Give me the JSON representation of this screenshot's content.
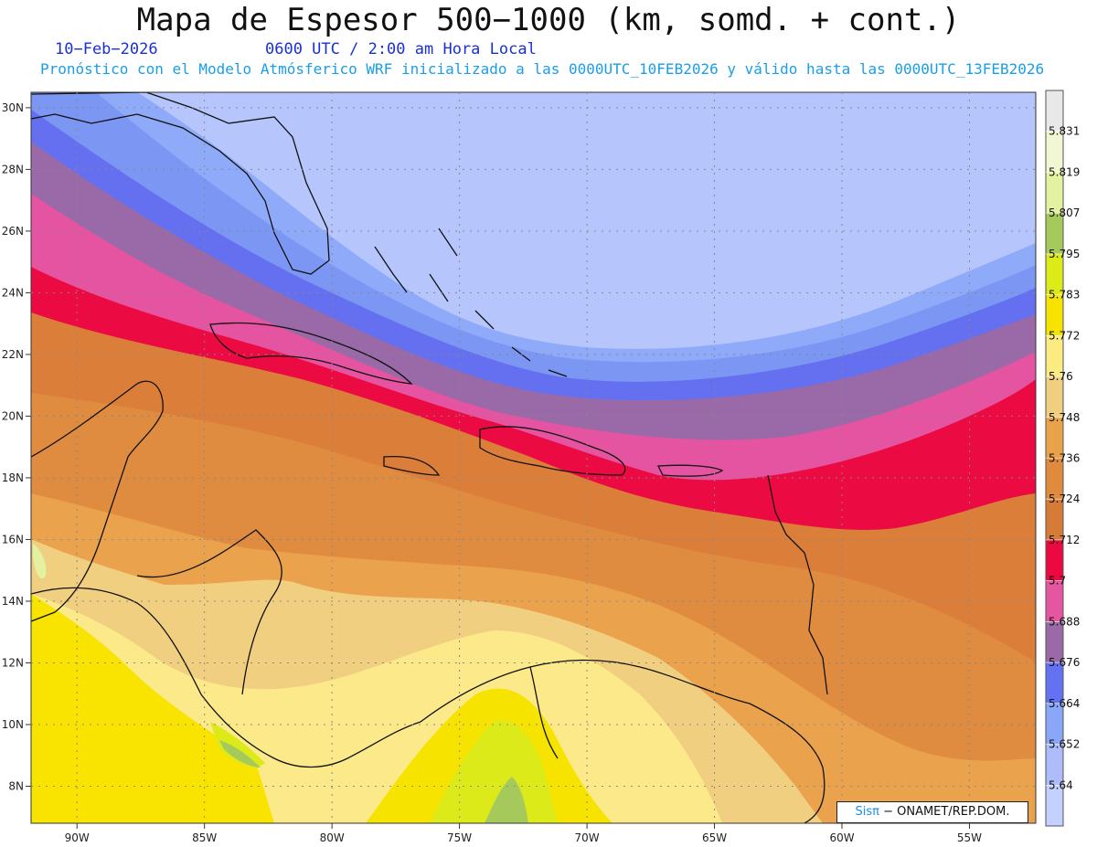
{
  "header": {
    "title": "Mapa de Espesor 500−1000 (km, somd. + cont.)",
    "date": "10−Feb−2026",
    "time": "0600 UTC / 2:00 am Hora Local",
    "description": "Pronóstico con el Modelo Atmósferico WRF inicializado a las 0000UTC_10FEB2026 y válido hasta las  0000UTC_13FEB2026"
  },
  "map": {
    "lon_labels": [
      "90W",
      "85W",
      "80W",
      "75W",
      "70W",
      "65W",
      "60W",
      "55W"
    ],
    "lat_labels": [
      "30N",
      "28N",
      "26N",
      "24N",
      "22N",
      "20N",
      "18N",
      "16N",
      "14N",
      "12N",
      "10N",
      "8N"
    ],
    "lon_values": [
      -90,
      -85,
      -80,
      -75,
      -70,
      -65,
      -60,
      -55
    ],
    "lat_values": [
      30,
      28,
      26,
      24,
      22,
      20,
      18,
      16,
      14,
      12,
      10,
      8
    ],
    "lon_range": [
      -91.8,
      -52.4
    ],
    "lat_range": [
      6.8,
      30.5
    ]
  },
  "colorbar": {
    "labels": [
      "5.831",
      "5.819",
      "5.807",
      "5.795",
      "5.783",
      "5.772",
      "5.76",
      "5.748",
      "5.736",
      "5.724",
      "5.712",
      "5.7",
      "5.688",
      "5.676",
      "5.664",
      "5.652",
      "5.64"
    ],
    "colors": [
      "#e8e8e8",
      "#f2f6d2",
      "#e2f2a0",
      "#a6c95c",
      "#dcea18",
      "#f6e400",
      "#fbeb80",
      "#f0cf80",
      "#eaa24a",
      "#df8a3c",
      "#d67a38",
      "#ec0840",
      "#e456a0",
      "#9a6aa6",
      "#6272f2",
      "#8aa6f8",
      "#aebcfc",
      "#c4d0fe"
    ]
  },
  "credit": {
    "brand": "Sisπ",
    "text": " − ONAMET/REP.DOM."
  }
}
